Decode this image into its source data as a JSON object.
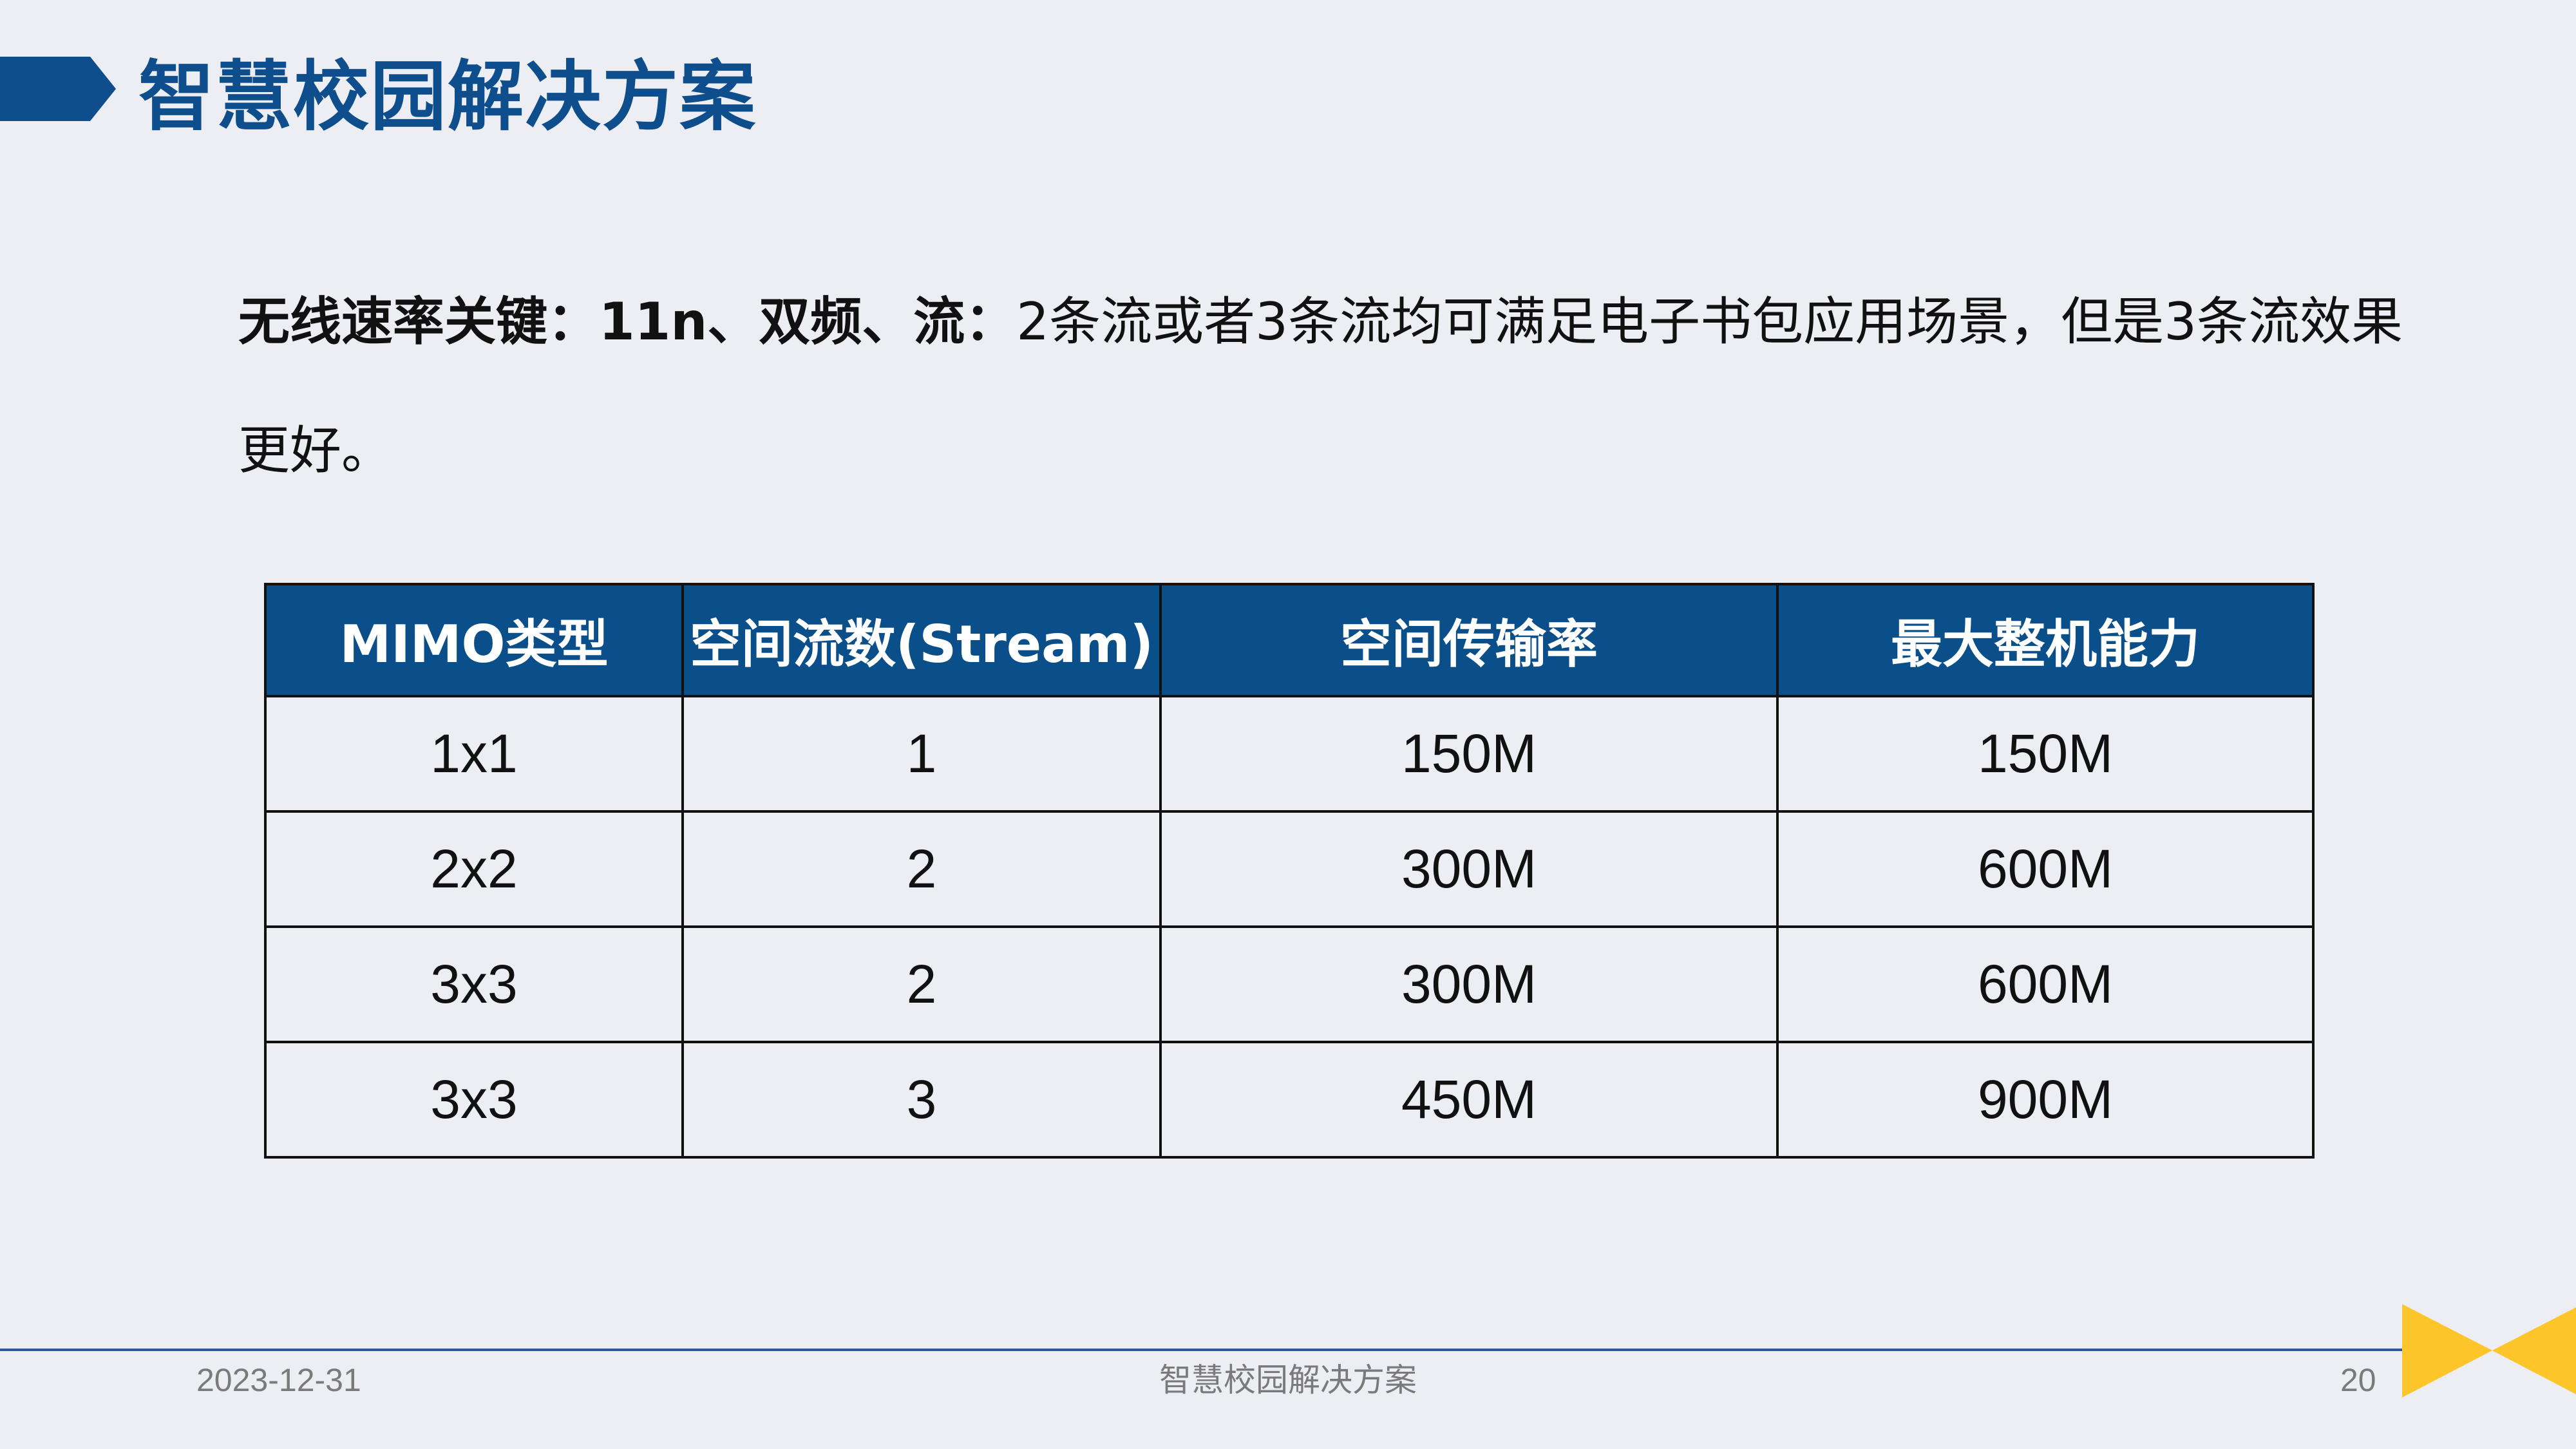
{
  "title": "智慧校园解决方案",
  "intro": {
    "lead": "无线速率关键：11n、双频、流：",
    "text": "2条流或者3条流均可满足电子书包应用场景，但是3条流效果更好。"
  },
  "table": {
    "headers": [
      "MIMO类型",
      "空间流数(Stream)",
      "空间传输率",
      "最大整机能力"
    ],
    "rows": [
      [
        "1x1",
        "1",
        "150M",
        "150M"
      ],
      [
        "2x2",
        "2",
        "300M",
        "600M"
      ],
      [
        "3x3",
        "2",
        "300M",
        "600M"
      ],
      [
        "3x3",
        "3",
        "450M",
        "900M"
      ]
    ]
  },
  "footer": {
    "date": "2023-12-31",
    "center": "智慧校园解决方案",
    "page": "20"
  },
  "colors": {
    "accent_blue": "#0e4e8c",
    "header_blue": "#0b4f8a",
    "accent_yellow": "#fcc52a",
    "background": "#eceef4"
  },
  "icons": {
    "title_marker": "arrow-marker-icon",
    "corner_decoration": "bowtie-icon"
  }
}
